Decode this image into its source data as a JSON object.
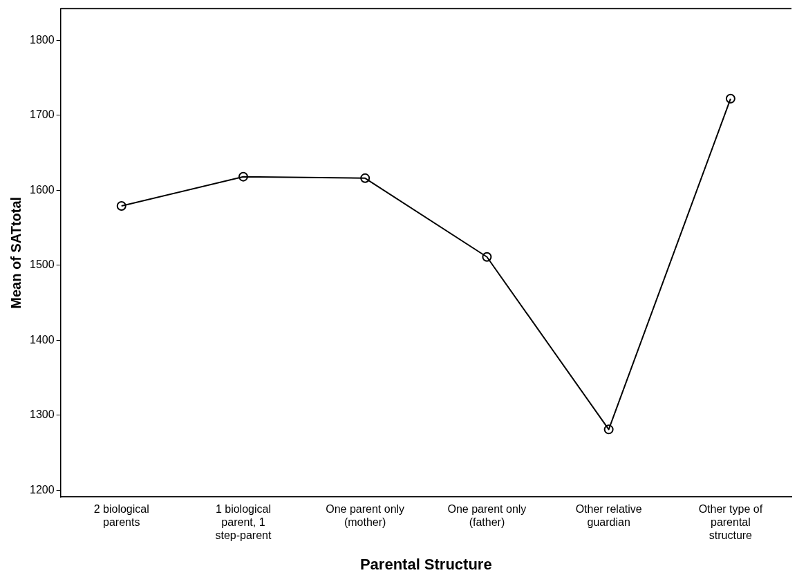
{
  "chart_data": {
    "type": "line",
    "xlabel": "Parental Structure",
    "ylabel": "Mean of SATtotal",
    "categories": [
      "2 biological parents",
      "1 biological parent, 1 step-parent",
      "One parent only (mother)",
      "One parent only (father)",
      "Other relative guardian",
      "Other type of parental structure"
    ],
    "series": [
      {
        "color": "#000000",
        "values": [
          1579,
          1618,
          1616,
          1511,
          1281,
          1722
        ]
      }
    ],
    "ylim": [
      1191,
      1842
    ],
    "yticks": [
      1200,
      1300,
      1400,
      1500,
      1600,
      1700,
      1800
    ],
    "grid": false,
    "legend": false,
    "marker": "circle",
    "line_style": "solid"
  }
}
